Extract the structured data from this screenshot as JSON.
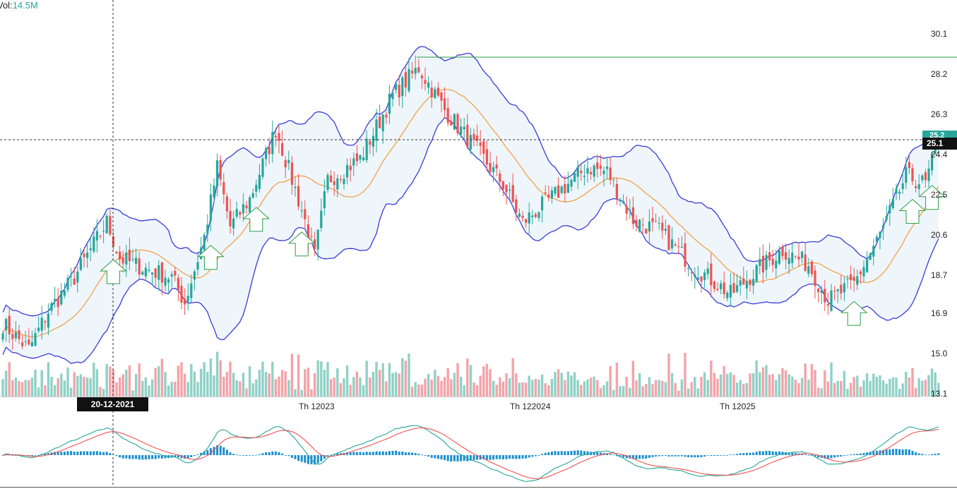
{
  "header": {
    "volume_prefix": "Vol:",
    "volume_value": "14.5M"
  },
  "crosshair": {
    "date_label": "20-12-2021",
    "price_label": "25.1"
  },
  "last_price_label": "25.2",
  "colors": {
    "up": "#26a69a",
    "down": "#ef5350",
    "vol_up": "#8fd1c6",
    "vol_down": "#f4a3a9",
    "band": "#3b3bd6",
    "band_fill": "#eef6fc",
    "ma": "#f5a04a",
    "arrow": "#2e9e44",
    "resistance": "#2e9e44",
    "macd_line": "#26a69a",
    "signal_line": "#ef5350",
    "histogram": "#1a8fd0"
  },
  "chart_data": {
    "type": "candlestick",
    "title": "",
    "price_axis": {
      "ticks": [
        30.1,
        28.2,
        26.3,
        24.4,
        22.5,
        20.6,
        18.7,
        16.9,
        15.0,
        13.1
      ],
      "range": [
        13.1,
        30.1
      ]
    },
    "time_axis": {
      "labels": [
        "Th 12023",
        "Th 122024",
        "Th 12025"
      ]
    },
    "resistance_level": 29.0,
    "crosshair_price": 25.1,
    "indicators": [
      "Bollinger Bands",
      "Moving Average",
      "Volume",
      "MACD"
    ],
    "close_path": [
      {
        "bar": 0,
        "close": 16.4
      },
      {
        "bar": 8,
        "close": 15.2
      },
      {
        "bar": 14,
        "close": 17.0
      },
      {
        "bar": 22,
        "close": 18.6
      },
      {
        "bar": 32,
        "close": 21.2
      },
      {
        "bar": 36,
        "close": 19.5
      },
      {
        "bar": 44,
        "close": 19.0
      },
      {
        "bar": 52,
        "close": 18.6
      },
      {
        "bar": 56,
        "close": 17.4
      },
      {
        "bar": 62,
        "close": 20.5
      },
      {
        "bar": 66,
        "close": 23.8
      },
      {
        "bar": 70,
        "close": 21.0
      },
      {
        "bar": 76,
        "close": 22.3
      },
      {
        "bar": 84,
        "close": 25.6
      },
      {
        "bar": 92,
        "close": 21.8
      },
      {
        "bar": 96,
        "close": 19.6
      },
      {
        "bar": 100,
        "close": 23.2
      },
      {
        "bar": 110,
        "close": 24.2
      },
      {
        "bar": 120,
        "close": 27.2
      },
      {
        "bar": 128,
        "close": 28.5
      },
      {
        "bar": 136,
        "close": 26.5
      },
      {
        "bar": 146,
        "close": 24.6
      },
      {
        "bar": 154,
        "close": 23.0
      },
      {
        "bar": 160,
        "close": 21.2
      },
      {
        "bar": 170,
        "close": 22.5
      },
      {
        "bar": 180,
        "close": 23.8
      },
      {
        "bar": 186,
        "close": 23.6
      },
      {
        "bar": 194,
        "close": 21.3
      },
      {
        "bar": 202,
        "close": 20.8
      },
      {
        "bar": 212,
        "close": 19.2
      },
      {
        "bar": 224,
        "close": 17.8
      },
      {
        "bar": 232,
        "close": 18.9
      },
      {
        "bar": 240,
        "close": 19.9
      },
      {
        "bar": 248,
        "close": 19.2
      },
      {
        "bar": 254,
        "close": 17.5
      },
      {
        "bar": 262,
        "close": 18.3
      },
      {
        "bar": 270,
        "close": 20.6
      },
      {
        "bar": 278,
        "close": 23.4
      },
      {
        "bar": 284,
        "close": 23.0
      },
      {
        "bar": 288,
        "close": 25.1
      }
    ],
    "buy_signal_arrows": [
      34,
      64,
      78,
      92,
      262,
      280,
      286
    ],
    "macd": {
      "histogram_range": [
        -1,
        1
      ]
    }
  }
}
